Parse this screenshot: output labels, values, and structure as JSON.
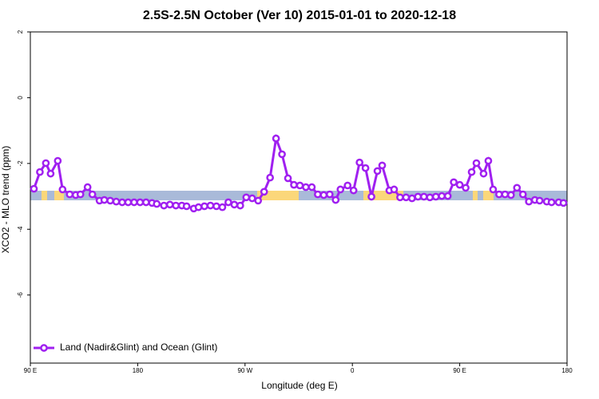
{
  "chart_data": {
    "type": "line",
    "title": "2.5S-2.5N October (Ver 10)   2015-01-01 to 2020-12-18",
    "x_label": "Longitude (deg E)",
    "y_label": "XCO2 - MLO trend (ppm)",
    "xlim": [
      90,
      540
    ],
    "xticks": [
      {
        "value": 90,
        "label": "90 E"
      },
      180,
      {
        "value": 270,
        "label": "90 W"
      },
      {
        "value": 360,
        "label": "0"
      },
      {
        "value": 450,
        "label": "90 E"
      },
      {
        "value": 540,
        "label": "180"
      }
    ],
    "ylim": [
      -8.07,
      2
    ],
    "yticks": [
      2,
      0,
      -2,
      -4,
      -6
    ],
    "legend": "bottom-left",
    "x": [
      93,
      98,
      103,
      107,
      113,
      117,
      123,
      128,
      132,
      138,
      142,
      148,
      152,
      157,
      162,
      167,
      172,
      177,
      182,
      187,
      192,
      196,
      202,
      207,
      212,
      217,
      221,
      227,
      231,
      236,
      241,
      246,
      251,
      256,
      261,
      266,
      271,
      276,
      281,
      286,
      291,
      296,
      301,
      306,
      311,
      316,
      321,
      326,
      331,
      336,
      341,
      346,
      350,
      356,
      361,
      366,
      371,
      376,
      381,
      385,
      391,
      395,
      400,
      405,
      410,
      415,
      420,
      425,
      430,
      435,
      440,
      445,
      450,
      455,
      460,
      464,
      470,
      474,
      478,
      483,
      488,
      493,
      498,
      503,
      508,
      513,
      517,
      523,
      527,
      533,
      537
    ],
    "series": [
      {
        "name": "Land (Nadir&Glint) and Ocean (Glint)",
        "color": "#a020f0",
        "values": [
          -2.77,
          -2.26,
          -1.99,
          -2.31,
          -1.92,
          -2.79,
          -2.94,
          -2.96,
          -2.94,
          -2.72,
          -2.94,
          -3.13,
          -3.11,
          -3.13,
          -3.16,
          -3.18,
          -3.18,
          -3.18,
          -3.18,
          -3.18,
          -3.2,
          -3.23,
          -3.28,
          -3.25,
          -3.28,
          -3.28,
          -3.3,
          -3.37,
          -3.33,
          -3.3,
          -3.28,
          -3.3,
          -3.33,
          -3.18,
          -3.25,
          -3.28,
          -3.03,
          -3.06,
          -3.13,
          -2.86,
          -2.43,
          -1.24,
          -1.72,
          -2.45,
          -2.65,
          -2.67,
          -2.72,
          -2.72,
          -2.94,
          -2.96,
          -2.94,
          -3.11,
          -2.79,
          -2.67,
          -2.82,
          -1.97,
          -2.14,
          -3.01,
          -2.23,
          -2.06,
          -2.82,
          -2.79,
          -3.03,
          -3.03,
          -3.06,
          -3.01,
          -3.01,
          -3.03,
          -3.01,
          -2.99,
          -2.99,
          -2.57,
          -2.65,
          -2.74,
          -2.26,
          -1.99,
          -2.31,
          -1.92,
          -2.79,
          -2.94,
          -2.94,
          -2.96,
          -2.74,
          -2.94,
          -3.16,
          -3.11,
          -3.13,
          -3.16,
          -3.18,
          -3.18,
          -3.2
        ]
      }
    ]
  }
}
